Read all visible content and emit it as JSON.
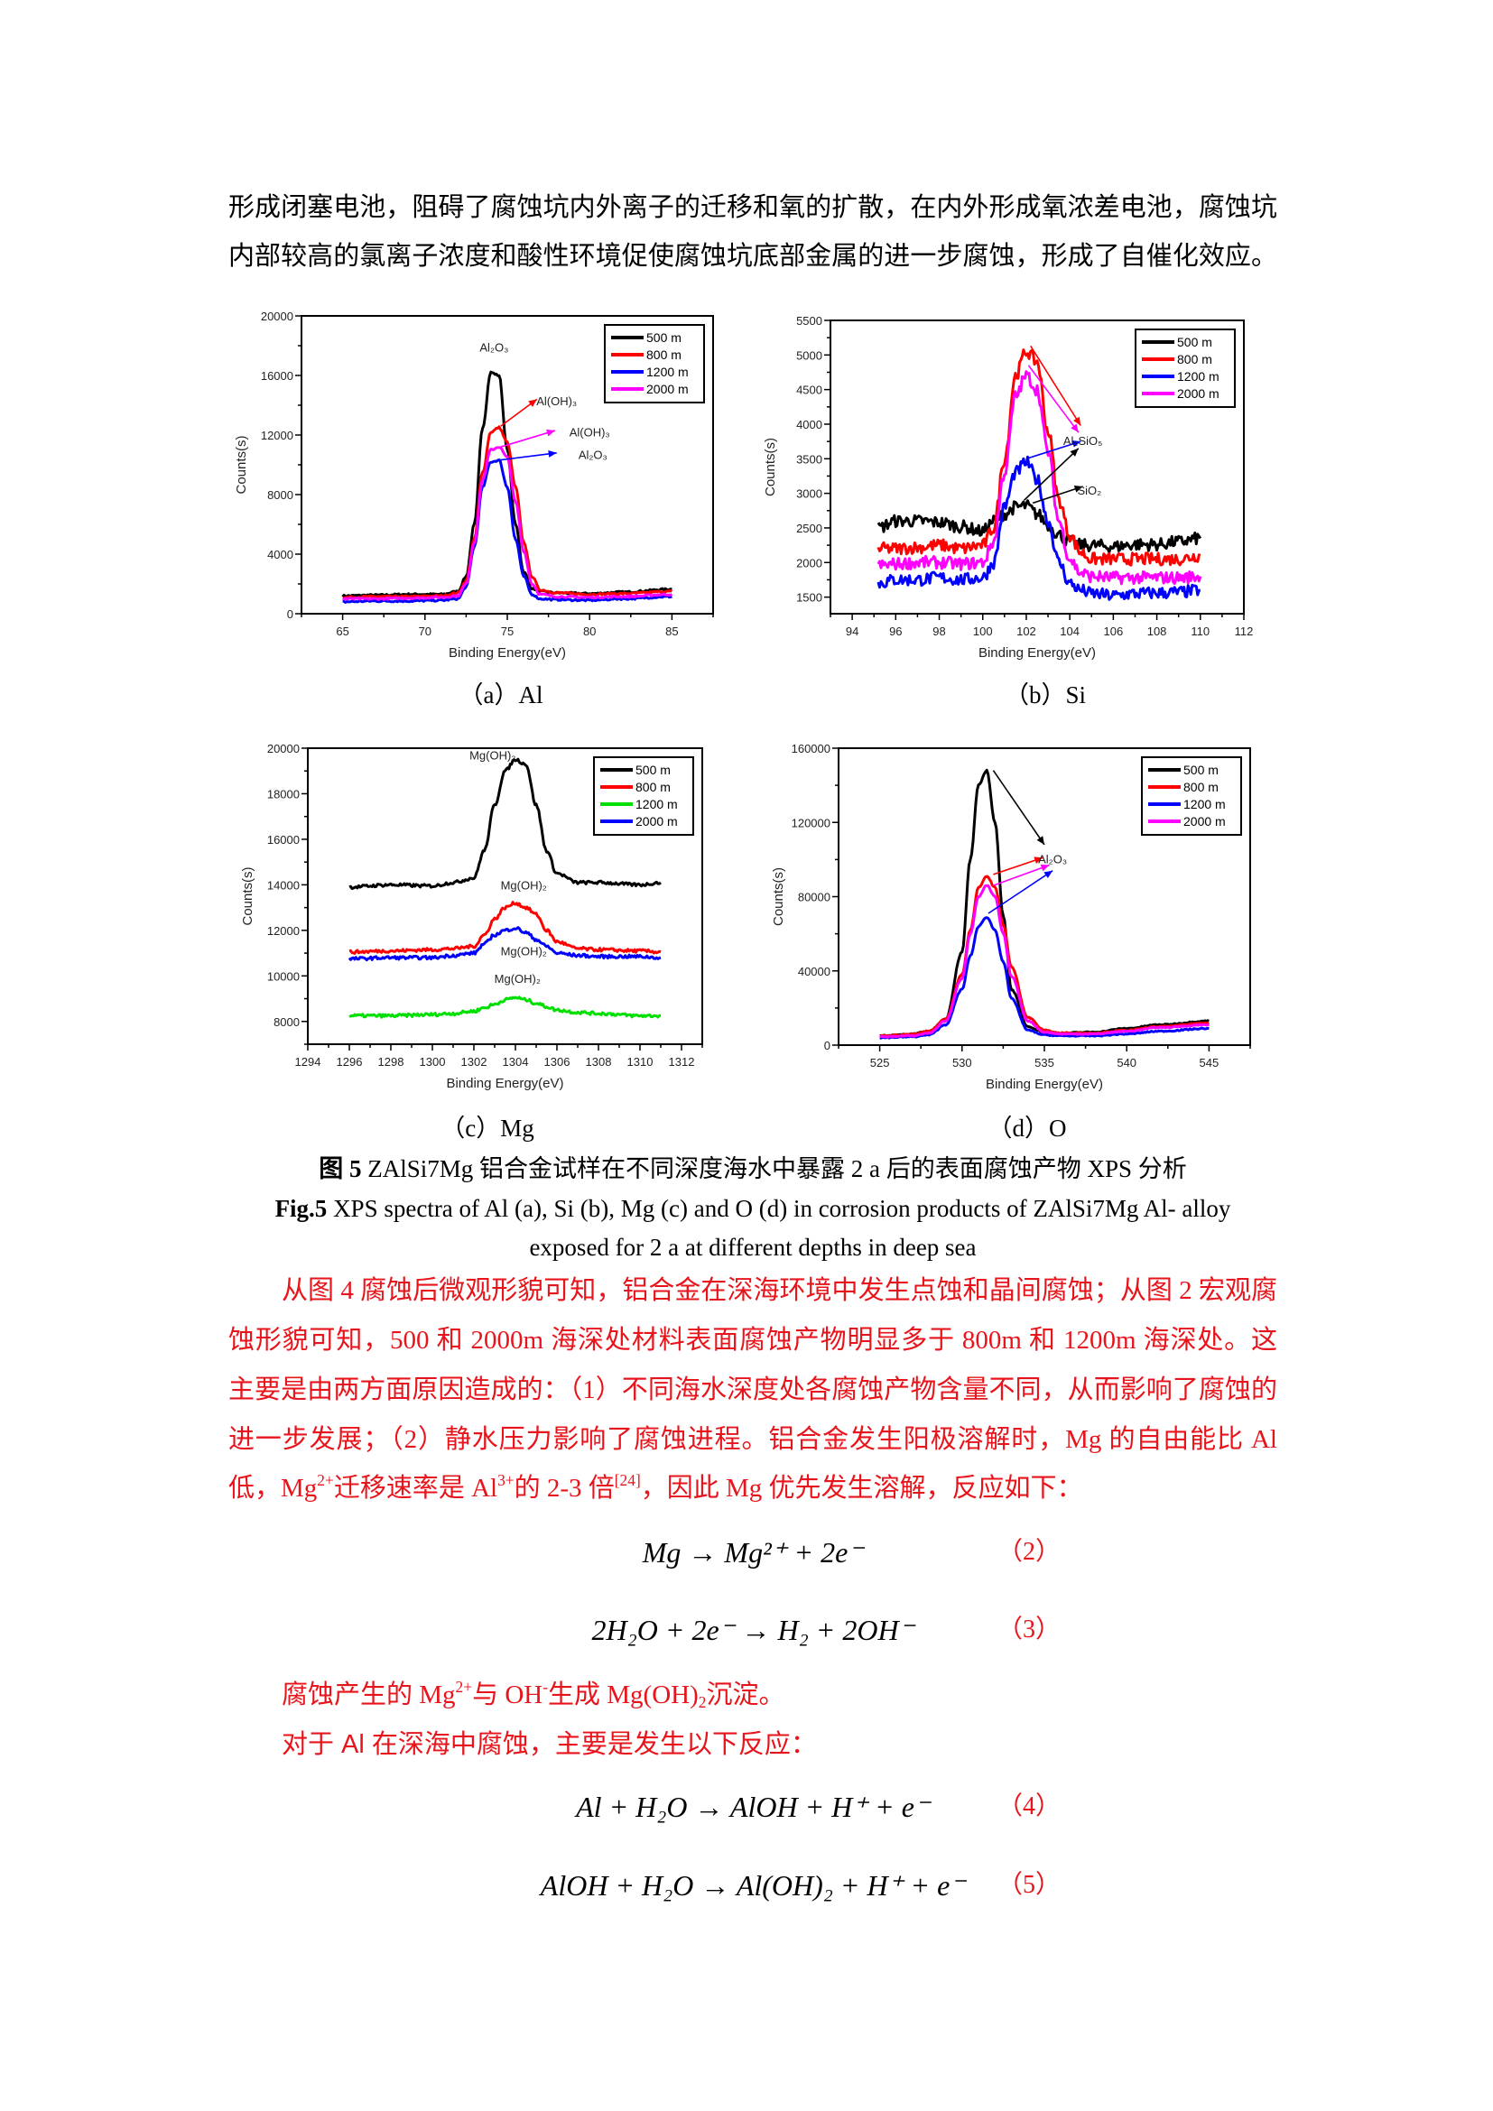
{
  "intro_lines": [
    "形成闭塞电池，阻碍了腐蚀坑内外离子的迁移和氧的扩散，在内外形成氧浓差电池，腐蚀坑",
    "内部较高的氯离子浓度和酸性环境促使腐蚀坑底部金属的进一步腐蚀，形成了自催化效应。"
  ],
  "colors": {
    "red_text": "#e8141b",
    "black": "#000000",
    "red": "#ff0000",
    "blue": "#0000ff",
    "magenta": "#ff00ff",
    "green": "#00e000"
  },
  "chart_data": [
    {
      "id": "a",
      "type": "line",
      "caption": "（a）Al",
      "xlabel": "Binding Energy(eV)",
      "ylabel": "Counts(s)",
      "xlim": [
        62.5,
        87.5
      ],
      "ylim": [
        0,
        20000
      ],
      "xticks": [
        65,
        70,
        75,
        80,
        85
      ],
      "yticks": [
        0,
        4000,
        8000,
        12000,
        16000,
        20000
      ],
      "legend_position": "top-right",
      "noise": 60,
      "x": [
        65,
        67,
        69,
        71,
        72,
        72.5,
        73,
        73.5,
        74,
        74.5,
        75,
        75.5,
        76,
        76.5,
        77,
        78,
        80,
        82,
        85
      ],
      "series": [
        {
          "name": "500 m",
          "color": "#000000",
          "values": [
            1200,
            1250,
            1300,
            1300,
            1500,
            2500,
            6000,
            12500,
            16200,
            16000,
            11000,
            6000,
            2800,
            1700,
            1500,
            1400,
            1350,
            1450,
            1650
          ]
        },
        {
          "name": "800 m",
          "color": "#ff0000",
          "values": [
            1100,
            1150,
            1150,
            1200,
            1400,
            2200,
            5000,
            9500,
            12200,
            12500,
            11500,
            8500,
            4800,
            2500,
            1600,
            1400,
            1300,
            1350,
            1500
          ]
        },
        {
          "name": "1200 m",
          "color": "#0000ff",
          "values": [
            800,
            850,
            850,
            900,
            1000,
            1800,
            4500,
            8500,
            10200,
            10300,
            8500,
            5000,
            2500,
            1300,
            1000,
            950,
            900,
            1000,
            1150
          ]
        },
        {
          "name": "2000 m",
          "color": "#ff00ff",
          "values": [
            1000,
            1000,
            1050,
            1100,
            1200,
            2000,
            4800,
            9000,
            11000,
            11200,
            10500,
            7500,
            4200,
            2000,
            1300,
            1150,
            1100,
            1150,
            1300
          ]
        }
      ],
      "annotations": [
        {
          "text": "Al₂O₃",
          "x": 74.2,
          "y": 17600
        },
        {
          "text": "Al(OH)₃",
          "x": 78.0,
          "y": 14000
        },
        {
          "text": "Al(OH)₃",
          "x": 80.0,
          "y": 11900
        },
        {
          "text": "Al₂O₃",
          "x": 80.2,
          "y": 10400
        }
      ],
      "arrows": [
        {
          "from": [
            74.6,
            12600
          ],
          "to": [
            76.8,
            14400
          ],
          "color": "#ff0000"
        },
        {
          "from": [
            74.6,
            11200
          ],
          "to": [
            77.9,
            12300
          ],
          "color": "#ff00ff"
        },
        {
          "from": [
            74.4,
            10300
          ],
          "to": [
            78.0,
            10800
          ],
          "color": "#0000ff"
        }
      ]
    },
    {
      "id": "b",
      "type": "line",
      "caption": "（b）Si",
      "xlabel": "Binding Energy(eV)",
      "ylabel": "Counts(s)",
      "xlim": [
        93,
        112
      ],
      "ylim": [
        1260,
        5500
      ],
      "xticks": [
        94,
        96,
        98,
        100,
        102,
        104,
        106,
        108,
        110,
        112
      ],
      "yticks": [
        1500,
        2000,
        2500,
        3000,
        3500,
        4000,
        4500,
        5000,
        5500
      ],
      "legend_position": "top-right",
      "noise": 90,
      "x": [
        95.2,
        96,
        97,
        98,
        99,
        100,
        100.5,
        101,
        101.5,
        102,
        102.5,
        103,
        103.5,
        104,
        104.5,
        105,
        106,
        107,
        108,
        109,
        110
      ],
      "series": [
        {
          "name": "500 m",
          "color": "#000000",
          "values": [
            2500,
            2600,
            2600,
            2580,
            2520,
            2450,
            2600,
            2700,
            2800,
            2820,
            2700,
            2550,
            2400,
            2300,
            2250,
            2250,
            2230,
            2260,
            2260,
            2300,
            2350
          ]
        },
        {
          "name": "800 m",
          "color": "#ff0000",
          "values": [
            2200,
            2200,
            2220,
            2250,
            2200,
            2250,
            2500,
            3500,
            4700,
            5050,
            4900,
            3900,
            2900,
            2400,
            2150,
            2050,
            2050,
            2050,
            2050,
            2050,
            2100
          ]
        },
        {
          "name": "1200 m",
          "color": "#0000ff",
          "values": [
            1700,
            1750,
            1750,
            1780,
            1750,
            1780,
            2000,
            2800,
            3300,
            3450,
            3200,
            2600,
            2000,
            1700,
            1600,
            1550,
            1520,
            1550,
            1560,
            1570,
            1600
          ]
        },
        {
          "name": "2000 m",
          "color": "#ff00ff",
          "values": [
            1950,
            1980,
            2000,
            2000,
            1980,
            2000,
            2300,
            3300,
            4400,
            4700,
            4500,
            3600,
            2600,
            2050,
            1850,
            1800,
            1780,
            1780,
            1780,
            1780,
            1800
          ]
        }
      ],
      "annotations": [
        {
          "text": "Al₂SiO₅",
          "x": 104.6,
          "y": 3700
        },
        {
          "text": "SiO₂",
          "x": 104.9,
          "y": 2980
        }
      ],
      "arrows": [
        {
          "from": [
            102.2,
            5130
          ],
          "to": [
            104.5,
            3980
          ],
          "color": "#ff0000"
        },
        {
          "from": [
            102.1,
            4850
          ],
          "to": [
            104.4,
            3880
          ],
          "color": "#ff00ff"
        },
        {
          "from": [
            102.0,
            3500
          ],
          "to": [
            104.5,
            3750
          ],
          "color": "#0000ff"
        },
        {
          "from": [
            101.9,
            2900
          ],
          "to": [
            104.4,
            3650
          ],
          "color": "#000000"
        },
        {
          "from": [
            102.3,
            2860
          ],
          "to": [
            104.6,
            3100
          ],
          "color": "#000000"
        }
      ]
    },
    {
      "id": "c",
      "type": "line",
      "caption": "（c）Mg",
      "xlabel": "Binding Energy(eV)",
      "ylabel": "Counts(s)",
      "xlim": [
        1294,
        1313
      ],
      "ylim": [
        7000,
        20000
      ],
      "xticks": [
        1294,
        1296,
        1298,
        1300,
        1302,
        1304,
        1306,
        1308,
        1310,
        1312
      ],
      "yticks": [
        8000,
        10000,
        12000,
        14000,
        16000,
        18000,
        20000
      ],
      "legend_position": "top-right",
      "noise": 70,
      "x": [
        1296,
        1298,
        1300,
        1301,
        1302,
        1302.5,
        1303,
        1303.5,
        1304,
        1304.5,
        1305,
        1305.5,
        1306,
        1307,
        1308,
        1310,
        1311
      ],
      "series": [
        {
          "name": "500 m",
          "color": "#000000",
          "values": [
            13900,
            14000,
            13950,
            14100,
            14300,
            15500,
            17500,
            19000,
            19500,
            19300,
            17500,
            15500,
            14500,
            14100,
            14100,
            14000,
            14100
          ]
        },
        {
          "name": "800 m",
          "color": "#ff0000",
          "values": [
            11050,
            11100,
            11150,
            11200,
            11300,
            11800,
            12500,
            13000,
            13200,
            13000,
            12700,
            12000,
            11500,
            11200,
            11150,
            11100,
            11050
          ]
        },
        {
          "name": "1200 m",
          "color": "#00e000",
          "values": [
            8250,
            8250,
            8300,
            8350,
            8450,
            8600,
            8750,
            8950,
            9050,
            8950,
            8800,
            8650,
            8500,
            8400,
            8350,
            8250,
            8250
          ]
        },
        {
          "name": "2000 m",
          "color": "#0000ff",
          "values": [
            10750,
            10800,
            10800,
            10900,
            11000,
            11400,
            11800,
            12000,
            12100,
            11900,
            11600,
            11300,
            11000,
            10900,
            10850,
            10850,
            10800
          ]
        }
      ],
      "annotations": [
        {
          "text": "Mg(OH)₂",
          "x": 1302.9,
          "y": 19500
        },
        {
          "text": "Mg(OH)₂",
          "x": 1304.4,
          "y": 13800
        },
        {
          "text": "Mg(OH)₂",
          "x": 1304.4,
          "y": 10900
        },
        {
          "text": "Mg(OH)₂",
          "x": 1304.1,
          "y": 9700
        }
      ],
      "arrows": []
    },
    {
      "id": "d",
      "type": "line",
      "caption": "（d）O",
      "xlabel": "Binding Energy(eV)",
      "ylabel": "Counts(s)",
      "xlim": [
        522.5,
        547.5
      ],
      "ylim": [
        0,
        160000
      ],
      "xticks": [
        525,
        530,
        535,
        540,
        545
      ],
      "yticks": [
        0,
        40000,
        80000,
        120000,
        160000
      ],
      "legend_position": "top-right",
      "noise": 300,
      "x": [
        525,
        527,
        528,
        529,
        530,
        530.5,
        531,
        531.5,
        532,
        532.5,
        533,
        534,
        535,
        536,
        538,
        540,
        542,
        545
      ],
      "series": [
        {
          "name": "500 m",
          "color": "#000000",
          "values": [
            5000,
            6000,
            7500,
            14000,
            50000,
            100000,
            140000,
            148000,
            120000,
            70000,
            30000,
            10000,
            7000,
            6500,
            7000,
            9000,
            11000,
            13000
          ]
        },
        {
          "name": "800 m",
          "color": "#ff0000",
          "values": [
            5000,
            5800,
            7500,
            14000,
            38000,
            62000,
            85000,
            91000,
            85000,
            65000,
            42000,
            15000,
            8000,
            6500,
            6500,
            8000,
            10000,
            12000
          ]
        },
        {
          "name": "1200 m",
          "color": "#0000ff",
          "values": [
            4000,
            4500,
            5500,
            11000,
            30000,
            48000,
            64000,
            69000,
            62000,
            45000,
            25000,
            8000,
            5500,
            5000,
            5000,
            6000,
            7500,
            9000
          ]
        },
        {
          "name": "2000 m",
          "color": "#ff00ff",
          "values": [
            4500,
            5000,
            6500,
            13000,
            36000,
            60000,
            80000,
            86000,
            80000,
            60000,
            37000,
            13000,
            7000,
            6000,
            6000,
            7500,
            9500,
            11000
          ]
        }
      ],
      "annotations": [
        {
          "text": "Al₂O₃",
          "x": 535.5,
          "y": 98000
        }
      ],
      "arrows": [
        {
          "from": [
            531.9,
            148000
          ],
          "to": [
            535.0,
            108000
          ],
          "color": "#000000"
        },
        {
          "from": [
            531.9,
            92000
          ],
          "to": [
            534.9,
            101000
          ],
          "color": "#ff0000"
        },
        {
          "from": [
            531.9,
            86000
          ],
          "to": [
            535.3,
            97000
          ],
          "color": "#ff00ff"
        },
        {
          "from": [
            531.6,
            71000
          ],
          "to": [
            535.5,
            94000
          ],
          "color": "#0000ff"
        }
      ]
    }
  ],
  "figure_caption": {
    "cn_label": "图 5",
    "cn_text": " ZAlSi7Mg 铝合金试样在不同深度海水中暴露 2 a 后的表面腐蚀产物 XPS 分析",
    "en_label": "Fig.5",
    "en_text": " XPS spectra of Al (a), Si (b), Mg (c) and O (d) in corrosion products of ZAlSi7Mg Al- alloy",
    "en_text2": "exposed for 2 a at different depths in deep sea"
  },
  "paragraph": {
    "lines": [
      "从图 4 腐蚀后微观形貌可知，铝合金在深海环境中发生点蚀和晶间腐蚀；从图 2 宏观腐",
      "蚀形貌可知，500 和 2000m 海深处材料表面腐蚀产物明显多于 800m 和 1200m 海深处。这",
      "主要是由两方面原因造成的：（1）不同海水深度处各腐蚀产物含量不同，从而影响了腐蚀的",
      "进一步发展；（2）静水压力影响了腐蚀进程。铝合金发生阳极溶解时，Mg 的自由能比 Al"
    ],
    "last_line": {
      "p1": "低，Mg",
      "sup1": "2+",
      "p2": "迁移速率是 Al",
      "sup2": "3+",
      "p3": "的 2-3 倍",
      "ref": "[24]",
      "p4": "，因此 Mg 优先发生溶解，反应如下："
    }
  },
  "equations": [
    {
      "text": "Mg → Mg²⁺ + 2e⁻",
      "number": "（2）"
    },
    {
      "text": "2H₂O + 2e⁻ → H₂ + 2OH⁻",
      "number": "（3）"
    },
    {
      "text": "Al + H₂O → AlOH + H⁺ + e⁻",
      "number": "（4）"
    },
    {
      "text": "AlOH + H₂O → Al(OH)₂ + H⁺ + e⁻",
      "number": "（5）"
    }
  ],
  "mg_sentence": {
    "p1": "腐蚀产生的 Mg",
    "sup1": "2+",
    "p2": "与 OH",
    "sup2": "-",
    "p3": "生成 Mg(OH)",
    "sub1": "2",
    "p4": "沉淀。"
  },
  "al_sentence": "对于 Al 在深海中腐蚀，主要是发生以下反应："
}
